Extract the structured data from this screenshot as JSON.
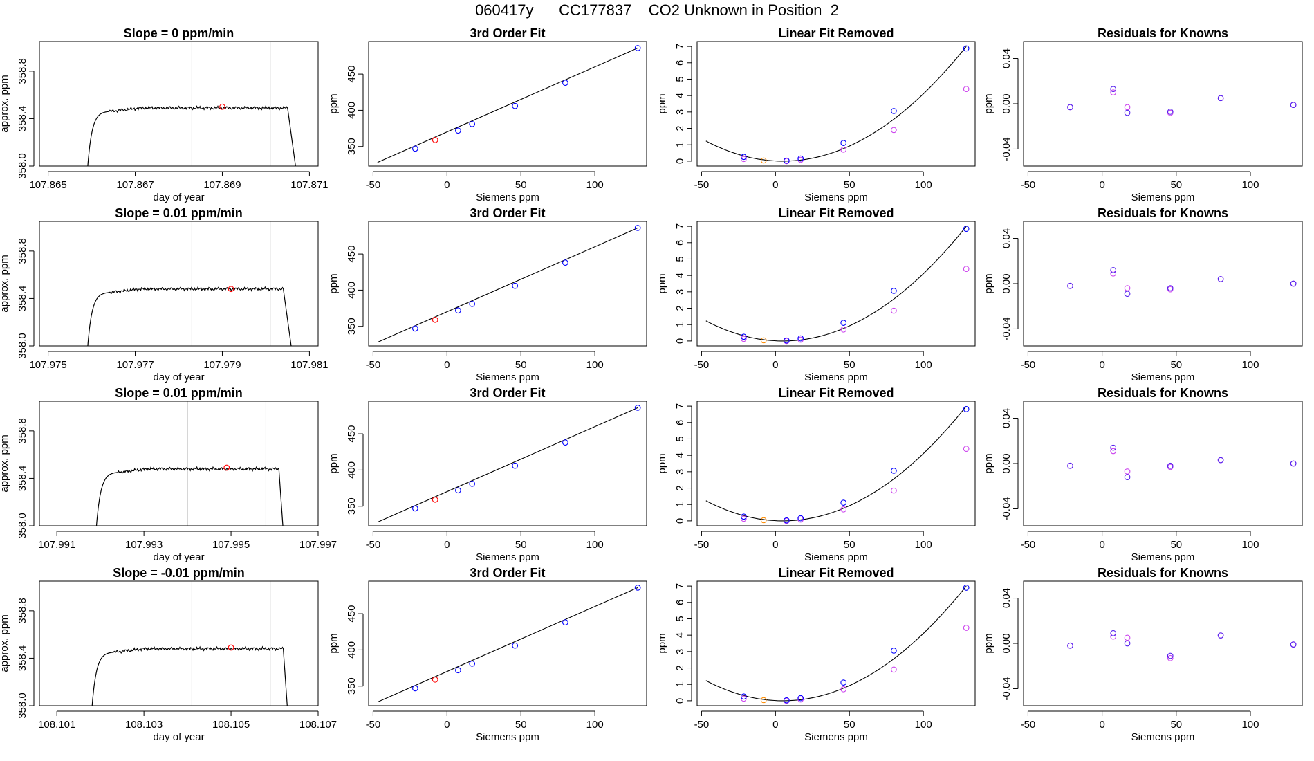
{
  "header": {
    "title": "060417y      CC177837    CO2 Unknown in Position  2"
  },
  "colors": {
    "known": "#0000ff",
    "unknown": "#ff0000",
    "target": "#ff8c00",
    "residual": "#cc44ee",
    "line": "#000000",
    "guide": "#bbbbbb"
  },
  "chart_data": [
    {
      "type": "line",
      "row": 1,
      "title": "Slope =  0  ppm/min",
      "xlabel": "day of year",
      "ylabel": "approx. ppm",
      "xlim": [
        107.8648,
        107.8712
      ],
      "ylim": [
        358.0,
        359.05
      ],
      "xticks": [
        107.865,
        107.867,
        107.869,
        107.871
      ],
      "xtick_labels": [
        "107.865",
        "107.867",
        "107.869",
        "107.871"
      ],
      "yticks": [
        358.0,
        358.4,
        358.8
      ],
      "ytick_labels": [
        "358.0",
        "358.4",
        "358.8"
      ],
      "vlines": [
        107.8683,
        107.8701
      ],
      "point": {
        "x": 107.869,
        "y": 358.5
      },
      "trace": {
        "x_start": 107.8659,
        "plateau_start": 107.8664,
        "plateau_end": 107.8705,
        "x_end": 107.8707,
        "base": 357.95,
        "plateau": 358.49,
        "noise": 0.012
      }
    },
    {
      "type": "scatter",
      "row": 1,
      "title": "3rd Order Fit",
      "xlabel": "Siemens ppm",
      "ylabel": "ppm",
      "xlim": [
        -53,
        135
      ],
      "ylim": [
        323,
        495
      ],
      "xticks": [
        -50,
        0,
        50,
        100
      ],
      "xtick_labels": [
        "-50",
        "0",
        "50",
        "100"
      ],
      "yticks": [
        350,
        400,
        450
      ],
      "ytick_labels": [
        "350",
        "400",
        "450"
      ],
      "fit_line": {
        "x": [
          -47,
          129
        ],
        "y": [
          328,
          486
        ]
      },
      "known": {
        "x": [
          -21.5,
          7.5,
          17,
          46,
          80,
          129
        ],
        "y": [
          347,
          372,
          381,
          406,
          438,
          486
        ]
      },
      "unknown": {
        "x": [
          -8
        ],
        "y": [
          359
        ]
      }
    },
    {
      "type": "scatter",
      "row": 1,
      "title": "Linear Fit Removed",
      "xlabel": "Siemens ppm",
      "ylabel": "ppm",
      "xlim": [
        -53,
        135
      ],
      "ylim": [
        -0.3,
        7.3
      ],
      "xticks": [
        -50,
        0,
        50,
        100
      ],
      "xtick_labels": [
        "-50",
        "0",
        "50",
        "100"
      ],
      "yticks": [
        0,
        1,
        2,
        3,
        4,
        5,
        6,
        7
      ],
      "ytick_labels": [
        "0",
        "1",
        "2",
        "3",
        "4",
        "5",
        "6",
        "7"
      ],
      "curve": {
        "x_start": -47,
        "x_end": 129,
        "vertex_x": 5,
        "a": 0.000455,
        "c": 0.0
      },
      "known": {
        "x": [
          -21.5,
          7.5,
          17,
          46,
          80,
          129
        ],
        "y": [
          0.26,
          0.03,
          0.16,
          1.11,
          3.06,
          6.88
        ]
      },
      "unknown": {
        "x": [
          -8
        ],
        "y": [
          0.04
        ]
      },
      "secondary": {
        "x": [
          -21.5,
          7.5,
          17,
          46,
          80,
          129
        ],
        "y": [
          0.13,
          0.0,
          0.08,
          0.7,
          1.9,
          4.4
        ]
      }
    },
    {
      "type": "scatter",
      "row": 1,
      "title": "Residuals for Knowns",
      "xlabel": "Siemens ppm",
      "ylabel": "ppm",
      "xlim": [
        -53,
        135
      ],
      "ylim": [
        -0.055,
        0.055
      ],
      "xticks": [
        -50,
        0,
        50,
        100
      ],
      "xtick_labels": [
        "-50",
        "0",
        "50",
        "100"
      ],
      "yticks": [
        -0.04,
        0.0,
        0.04
      ],
      "ytick_labels": [
        "-0.04",
        "0.00",
        "0.04"
      ],
      "known": {
        "x": [
          -21.5,
          7.5,
          17,
          46,
          80,
          129
        ],
        "y": [
          -0.003,
          0.013,
          -0.008,
          -0.007,
          0.005,
          -0.001
        ]
      },
      "secondary": {
        "x": [
          -21.5,
          7.5,
          17,
          46,
          80,
          129
        ],
        "y": [
          -0.003,
          0.01,
          -0.003,
          -0.008,
          0.005,
          -0.001
        ]
      }
    },
    {
      "type": "line",
      "row": 2,
      "title": "Slope =  0.01  ppm/min",
      "xlabel": "day of year",
      "ylabel": "approx. ppm",
      "xlim": [
        107.9748,
        107.9812
      ],
      "ylim": [
        358.0,
        359.05
      ],
      "xticks": [
        107.975,
        107.977,
        107.979,
        107.981
      ],
      "xtick_labels": [
        "107.975",
        "107.977",
        "107.979",
        "107.981"
      ],
      "yticks": [
        358.0,
        358.4,
        358.8
      ],
      "ytick_labels": [
        "358.0",
        "358.4",
        "358.8"
      ],
      "vlines": [
        107.9783,
        107.9801
      ],
      "point": {
        "x": 107.9792,
        "y": 358.48
      },
      "trace": {
        "x_start": 107.9759,
        "plateau_start": 107.9764,
        "plateau_end": 107.9804,
        "x_end": 107.9806,
        "base": 357.95,
        "plateau": 358.48,
        "noise": 0.012
      }
    },
    {
      "type": "scatter",
      "row": 2,
      "title": "3rd Order Fit",
      "xlabel": "Siemens ppm",
      "ylabel": "ppm",
      "xlim": [
        -53,
        135
      ],
      "ylim": [
        323,
        495
      ],
      "xticks": [
        -50,
        0,
        50,
        100
      ],
      "xtick_labels": [
        "-50",
        "0",
        "50",
        "100"
      ],
      "yticks": [
        350,
        400,
        450
      ],
      "ytick_labels": [
        "350",
        "400",
        "450"
      ],
      "fit_line": {
        "x": [
          -47,
          129
        ],
        "y": [
          328,
          486
        ]
      },
      "known": {
        "x": [
          -21.5,
          7.5,
          17,
          46,
          80,
          129
        ],
        "y": [
          347,
          372,
          381,
          406,
          438,
          486
        ]
      },
      "unknown": {
        "x": [
          -8
        ],
        "y": [
          359
        ]
      }
    },
    {
      "type": "scatter",
      "row": 2,
      "title": "Linear Fit Removed",
      "xlabel": "Siemens ppm",
      "ylabel": "ppm",
      "xlim": [
        -53,
        135
      ],
      "ylim": [
        -0.3,
        7.3
      ],
      "xticks": [
        -50,
        0,
        50,
        100
      ],
      "xtick_labels": [
        "-50",
        "0",
        "50",
        "100"
      ],
      "yticks": [
        0,
        1,
        2,
        3,
        4,
        5,
        6,
        7
      ],
      "ytick_labels": [
        "0",
        "1",
        "2",
        "3",
        "4",
        "5",
        "6",
        "7"
      ],
      "curve": {
        "x_start": -47,
        "x_end": 129,
        "vertex_x": 5,
        "a": 0.000455,
        "c": 0.0
      },
      "known": {
        "x": [
          -21.5,
          7.5,
          17,
          46,
          80,
          129
        ],
        "y": [
          0.26,
          0.03,
          0.16,
          1.11,
          3.06,
          6.85
        ]
      },
      "unknown": {
        "x": [
          -8
        ],
        "y": [
          0.04
        ]
      },
      "secondary": {
        "x": [
          -21.5,
          7.5,
          17,
          46,
          80,
          129
        ],
        "y": [
          0.13,
          0.0,
          0.08,
          0.7,
          1.85,
          4.4
        ]
      }
    },
    {
      "type": "scatter",
      "row": 2,
      "title": "Residuals for Knowns",
      "xlabel": "Siemens ppm",
      "ylabel": "ppm",
      "xlim": [
        -53,
        135
      ],
      "ylim": [
        -0.055,
        0.055
      ],
      "xticks": [
        -50,
        0,
        50,
        100
      ],
      "xtick_labels": [
        "-50",
        "0",
        "50",
        "100"
      ],
      "yticks": [
        -0.04,
        0.0,
        0.04
      ],
      "ytick_labels": [
        "-0.04",
        "0.00",
        "0.04"
      ],
      "known": {
        "x": [
          -21.5,
          7.5,
          17,
          46,
          80,
          129
        ],
        "y": [
          -0.002,
          0.012,
          -0.009,
          -0.004,
          0.004,
          0.0
        ]
      },
      "secondary": {
        "x": [
          -21.5,
          7.5,
          17,
          46,
          80,
          129
        ],
        "y": [
          -0.002,
          0.009,
          -0.004,
          -0.005,
          0.004,
          0.0
        ]
      }
    },
    {
      "type": "line",
      "row": 3,
      "title": "Slope =  0.01  ppm/min",
      "xlabel": "day of year",
      "ylabel": "approx. ppm",
      "xlim": [
        107.9906,
        107.997
      ],
      "ylim": [
        358.0,
        359.05
      ],
      "xticks": [
        107.991,
        107.993,
        107.995,
        107.997
      ],
      "xtick_labels": [
        "107.991",
        "107.993",
        "107.995",
        "107.997"
      ],
      "yticks": [
        358.0,
        358.4,
        358.8
      ],
      "ytick_labels": [
        "358.0",
        "358.4",
        "358.8"
      ],
      "vlines": [
        107.994,
        107.9958
      ],
      "point": {
        "x": 107.9949,
        "y": 358.49
      },
      "trace": {
        "x_start": 107.9919,
        "plateau_start": 107.9924,
        "plateau_end": 107.9961,
        "x_end": 107.9962,
        "base": 357.95,
        "plateau": 358.48,
        "noise": 0.012
      }
    },
    {
      "type": "scatter",
      "row": 3,
      "title": "3rd Order Fit",
      "xlabel": "Siemens ppm",
      "ylabel": "ppm",
      "xlim": [
        -53,
        135
      ],
      "ylim": [
        323,
        495
      ],
      "xticks": [
        -50,
        0,
        50,
        100
      ],
      "xtick_labels": [
        "-50",
        "0",
        "50",
        "100"
      ],
      "yticks": [
        350,
        400,
        450
      ],
      "ytick_labels": [
        "350",
        "400",
        "450"
      ],
      "fit_line": {
        "x": [
          -47,
          129
        ],
        "y": [
          328,
          486
        ]
      },
      "known": {
        "x": [
          -21.5,
          7.5,
          17,
          46,
          80,
          129
        ],
        "y": [
          347,
          372,
          381,
          406,
          438,
          486
        ]
      },
      "unknown": {
        "x": [
          -8
        ],
        "y": [
          359
        ]
      }
    },
    {
      "type": "scatter",
      "row": 3,
      "title": "Linear Fit Removed",
      "xlabel": "Siemens ppm",
      "ylabel": "ppm",
      "xlim": [
        -53,
        135
      ],
      "ylim": [
        -0.3,
        7.3
      ],
      "xticks": [
        -50,
        0,
        50,
        100
      ],
      "xtick_labels": [
        "-50",
        "0",
        "50",
        "100"
      ],
      "yticks": [
        0,
        1,
        2,
        3,
        4,
        5,
        6,
        7
      ],
      "ytick_labels": [
        "0",
        "1",
        "2",
        "3",
        "4",
        "5",
        "6",
        "7"
      ],
      "curve": {
        "x_start": -47,
        "x_end": 129,
        "vertex_x": 5,
        "a": 0.000455,
        "c": 0.0
      },
      "known": {
        "x": [
          -21.5,
          7.5,
          17,
          46,
          80,
          129
        ],
        "y": [
          0.26,
          0.03,
          0.16,
          1.11,
          3.06,
          6.82
        ]
      },
      "unknown": {
        "x": [
          -8
        ],
        "y": [
          0.04
        ]
      },
      "secondary": {
        "x": [
          -21.5,
          7.5,
          17,
          46,
          80,
          129
        ],
        "y": [
          0.13,
          0.0,
          0.08,
          0.7,
          1.85,
          4.4
        ]
      }
    },
    {
      "type": "scatter",
      "row": 3,
      "title": "Residuals for Knowns",
      "xlabel": "Siemens ppm",
      "ylabel": "ppm",
      "xlim": [
        -53,
        135
      ],
      "ylim": [
        -0.055,
        0.055
      ],
      "xticks": [
        -50,
        0,
        50,
        100
      ],
      "xtick_labels": [
        "-50",
        "0",
        "50",
        "100"
      ],
      "yticks": [
        -0.04,
        0.0,
        0.04
      ],
      "ytick_labels": [
        "-0.04",
        "0.00",
        "0.04"
      ],
      "known": {
        "x": [
          -21.5,
          7.5,
          17,
          46,
          80,
          129
        ],
        "y": [
          -0.002,
          0.014,
          -0.012,
          -0.002,
          0.003,
          0.0
        ]
      },
      "secondary": {
        "x": [
          -21.5,
          7.5,
          17,
          46,
          80,
          129
        ],
        "y": [
          -0.002,
          0.011,
          -0.007,
          -0.003,
          0.003,
          0.0
        ]
      }
    },
    {
      "type": "line",
      "row": 4,
      "title": "Slope =  -0.01  ppm/min",
      "xlabel": "day of year",
      "ylabel": "approx. ppm",
      "xlim": [
        108.1006,
        108.107
      ],
      "ylim": [
        358.0,
        359.05
      ],
      "xticks": [
        108.101,
        108.103,
        108.105,
        108.107
      ],
      "xtick_labels": [
        "108.101",
        "108.103",
        "108.105",
        "108.107"
      ],
      "yticks": [
        358.0,
        358.4,
        358.8
      ],
      "ytick_labels": [
        "358.0",
        "358.4",
        "358.8"
      ],
      "vlines": [
        108.1041,
        108.1059
      ],
      "point": {
        "x": 108.105,
        "y": 358.49
      },
      "trace": {
        "x_start": 108.1018,
        "plateau_start": 108.1023,
        "plateau_end": 108.1062,
        "x_end": 108.1063,
        "base": 357.95,
        "plateau": 358.48,
        "noise": 0.012
      }
    },
    {
      "type": "scatter",
      "row": 4,
      "title": "3rd Order Fit",
      "xlabel": "Siemens ppm",
      "ylabel": "ppm",
      "xlim": [
        -53,
        135
      ],
      "ylim": [
        323,
        495
      ],
      "xticks": [
        -50,
        0,
        50,
        100
      ],
      "xtick_labels": [
        "-50",
        "0",
        "50",
        "100"
      ],
      "yticks": [
        350,
        400,
        450
      ],
      "ytick_labels": [
        "350",
        "400",
        "450"
      ],
      "fit_line": {
        "x": [
          -47,
          129
        ],
        "y": [
          328,
          486
        ]
      },
      "known": {
        "x": [
          -21.5,
          7.5,
          17,
          46,
          80,
          129
        ],
        "y": [
          347,
          372,
          381,
          406,
          438,
          486
        ]
      },
      "unknown": {
        "x": [
          -8
        ],
        "y": [
          359
        ]
      }
    },
    {
      "type": "scatter",
      "row": 4,
      "title": "Linear Fit Removed",
      "xlabel": "Siemens ppm",
      "ylabel": "ppm",
      "xlim": [
        -53,
        135
      ],
      "ylim": [
        -0.3,
        7.3
      ],
      "xticks": [
        -50,
        0,
        50,
        100
      ],
      "xtick_labels": [
        "-50",
        "0",
        "50",
        "100"
      ],
      "yticks": [
        0,
        1,
        2,
        3,
        4,
        5,
        6,
        7
      ],
      "ytick_labels": [
        "0",
        "1",
        "2",
        "3",
        "4",
        "5",
        "6",
        "7"
      ],
      "curve": {
        "x_start": -47,
        "x_end": 129,
        "vertex_x": 5,
        "a": 0.000455,
        "c": 0.0
      },
      "known": {
        "x": [
          -21.5,
          7.5,
          17,
          46,
          80,
          129
        ],
        "y": [
          0.26,
          0.03,
          0.16,
          1.11,
          3.06,
          6.9
        ]
      },
      "unknown": {
        "x": [
          -8
        ],
        "y": [
          0.04
        ]
      },
      "secondary": {
        "x": [
          -21.5,
          7.5,
          17,
          46,
          80,
          129
        ],
        "y": [
          0.13,
          0.0,
          0.08,
          0.7,
          1.9,
          4.45
        ]
      }
    },
    {
      "type": "scatter",
      "row": 4,
      "title": "Residuals for Knowns",
      "xlabel": "Siemens ppm",
      "ylabel": "ppm",
      "xlim": [
        -53,
        135
      ],
      "ylim": [
        -0.055,
        0.055
      ],
      "xticks": [
        -50,
        0,
        50,
        100
      ],
      "xtick_labels": [
        "-50",
        "0",
        "50",
        "100"
      ],
      "yticks": [
        -0.04,
        0.0,
        0.04
      ],
      "ytick_labels": [
        "-0.04",
        "0.00",
        "0.04"
      ],
      "known": {
        "x": [
          -21.5,
          7.5,
          17,
          46,
          80,
          129
        ],
        "y": [
          -0.002,
          0.009,
          0.0,
          -0.011,
          0.007,
          -0.001
        ]
      },
      "secondary": {
        "x": [
          -21.5,
          7.5,
          17,
          46,
          80,
          129
        ],
        "y": [
          -0.002,
          0.006,
          0.005,
          -0.013,
          0.007,
          -0.001
        ]
      }
    }
  ]
}
